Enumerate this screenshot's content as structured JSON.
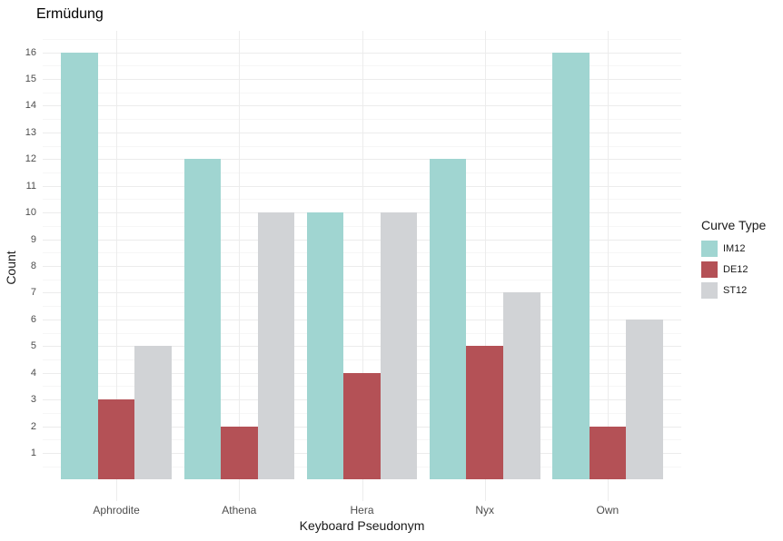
{
  "chart_data": {
    "type": "bar",
    "title": "Ermüdung",
    "xlabel": "Keyboard Pseudonym",
    "ylabel": "Count",
    "categories": [
      "Aphrodite",
      "Athena",
      "Hera",
      "Nyx",
      "Own"
    ],
    "series": [
      {
        "name": "IM12",
        "color": "#A0D5D1",
        "values": [
          16,
          12,
          10,
          12,
          16
        ]
      },
      {
        "name": "DE12",
        "color": "#B45156",
        "values": [
          3,
          2,
          4,
          5,
          2
        ]
      },
      {
        "name": "ST12",
        "color": "#D1D3D6",
        "values": [
          5,
          10,
          10,
          7,
          6
        ]
      }
    ],
    "y_ticks": [
      1,
      2,
      3,
      4,
      5,
      6,
      7,
      8,
      9,
      10,
      11,
      12,
      13,
      14,
      15,
      16
    ],
    "ylim": [
      -0.8,
      16.8
    ],
    "bar_mode": "dodge",
    "grid": {
      "major_color": "#ECECEC",
      "minor_color": "#F6F6F6",
      "minor_step": 0.5,
      "vertical_at_categories": true
    },
    "legend": {
      "title": "Curve Type",
      "position": "right"
    },
    "text_colors": {
      "title": "#000000",
      "axis_title": "#1A1A1A",
      "tick": "#4D4D4D"
    },
    "background": "#FFFFFF"
  }
}
